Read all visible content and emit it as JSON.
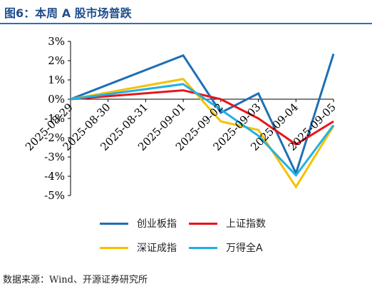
{
  "title": "图6：本周 A 股市场普跌",
  "source": "数据来源：Wind、开源证券研究所",
  "chart_data": {
    "type": "line",
    "categories": [
      "2025-08-29",
      "2025-08-30",
      "2025-08-31",
      "2025-09-01",
      "2025-09-02",
      "2025-09-03",
      "2025-09-04",
      "2025-09-05"
    ],
    "ylim": [
      -5,
      3
    ],
    "yticks": [
      "3%",
      "2%",
      "1%",
      "0%",
      "-1%",
      "-2%",
      "-3%",
      "-4%",
      "-5%"
    ],
    "legend_position": "bottom",
    "series": [
      {
        "name": "创业板指",
        "color": "#1f6fb5",
        "points": [
          [
            0,
            0
          ],
          [
            3,
            2.27
          ],
          [
            4,
            -0.7
          ],
          [
            5,
            0.3
          ],
          [
            6,
            -3.85
          ],
          [
            7,
            2.35
          ]
        ]
      },
      {
        "name": "上证指数",
        "color": "#e8141c",
        "points": [
          [
            0,
            0
          ],
          [
            3,
            0.46
          ],
          [
            4,
            0.0
          ],
          [
            5,
            -1.0
          ],
          [
            6,
            -2.35
          ],
          [
            7,
            -1.15
          ]
        ]
      },
      {
        "name": "深证成指",
        "color": "#f6c000",
        "points": [
          [
            0,
            0
          ],
          [
            3,
            1.05
          ],
          [
            4,
            -1.15
          ],
          [
            5,
            -1.6
          ],
          [
            6,
            -4.55
          ],
          [
            7,
            -1.4
          ]
        ]
      },
      {
        "name": "万得全A",
        "color": "#21b0e4",
        "points": [
          [
            0,
            0
          ],
          [
            3,
            0.78
          ],
          [
            4,
            -0.55
          ],
          [
            5,
            -1.9
          ],
          [
            6,
            -3.95
          ],
          [
            7,
            -1.35
          ]
        ]
      }
    ]
  }
}
